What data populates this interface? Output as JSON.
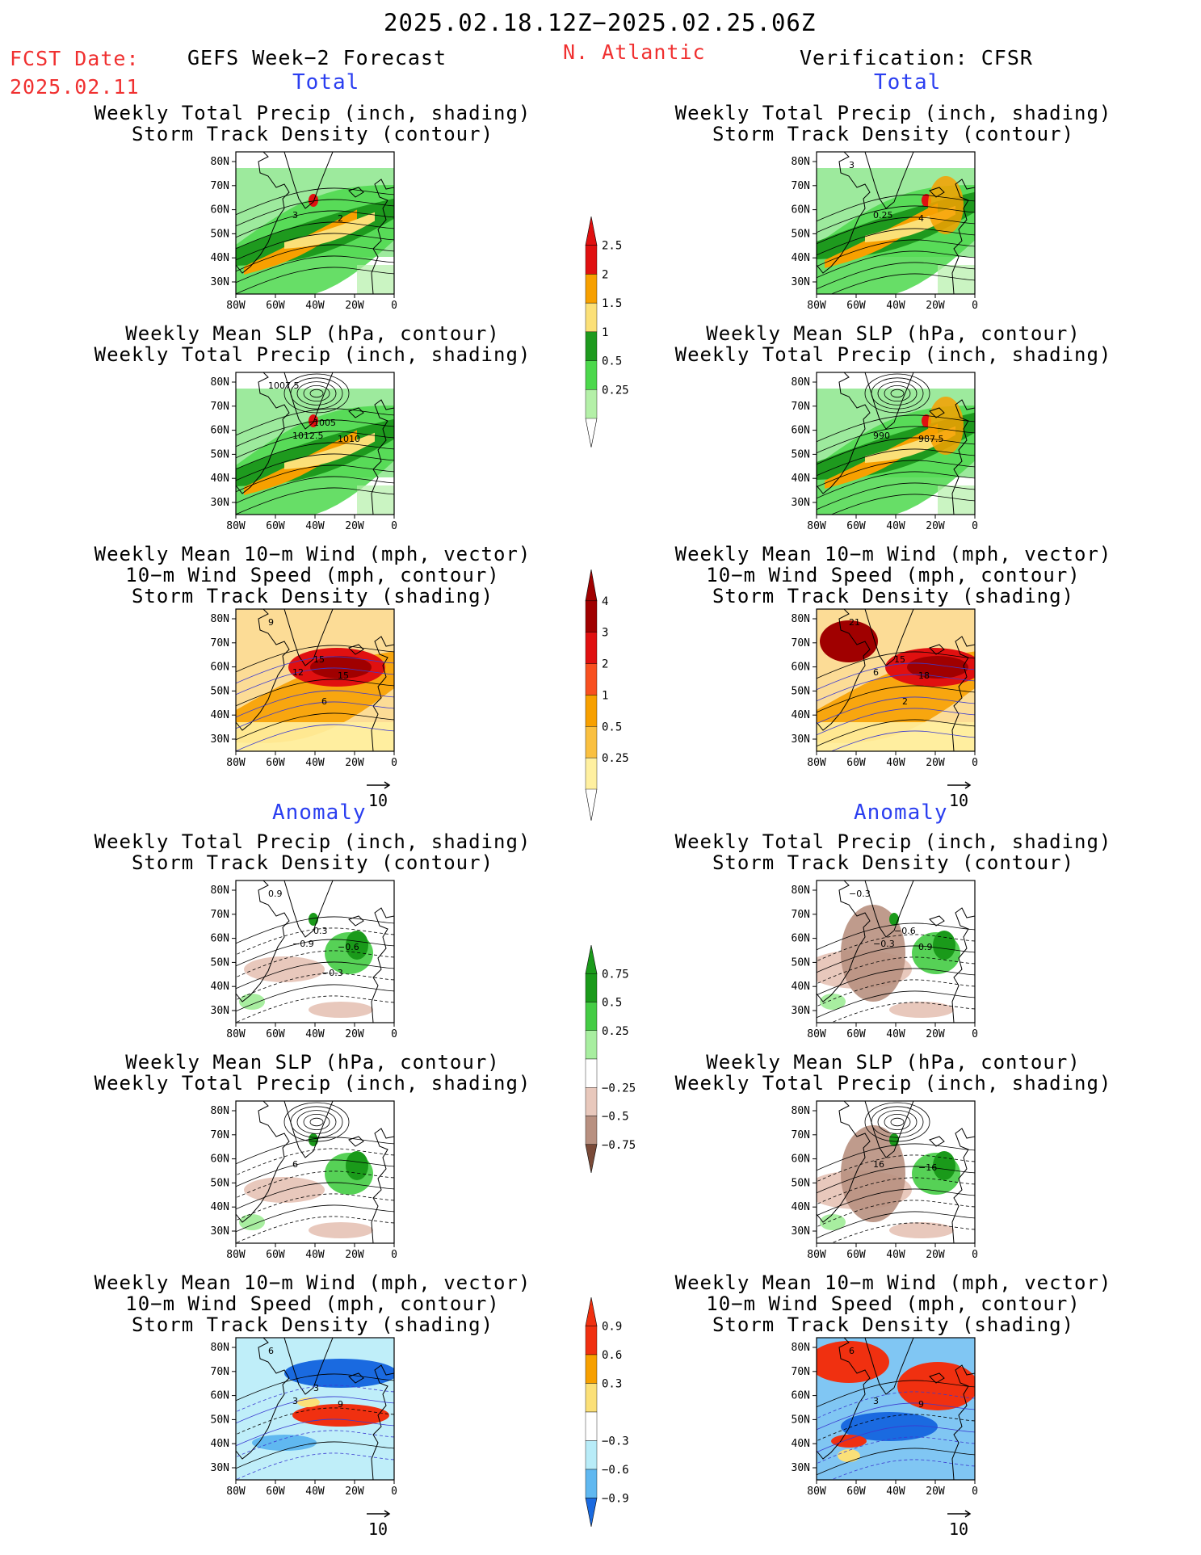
{
  "header": {
    "period": "2025.02.18.12Z−2025.02.25.06Z",
    "fcst_label": "FCST Date:",
    "fcst_date": "2025.02.11",
    "left_title": "GEFS Week−2 Forecast",
    "region": "N. Atlantic",
    "right_title": "Verification: CFSR"
  },
  "sections": {
    "total": "Total",
    "anomaly": "Anomaly"
  },
  "titles": {
    "precip_track": [
      "Weekly Total Precip (inch, shading)",
      "Storm Track Density (contour)"
    ],
    "slp_precip": [
      "Weekly Mean SLP (hPa, contour)",
      "Weekly Total Precip (inch, shading)"
    ],
    "wind_track": [
      "Weekly Mean 10−m Wind (mph, vector)",
      "10−m Wind Speed (mph, contour)",
      "Storm Track Density (shading)"
    ]
  },
  "axes": {
    "lat_labels": [
      "80N",
      "70N",
      "60N",
      "50N",
      "40N",
      "30N"
    ],
    "lon_labels": [
      "80W",
      "60W",
      "40W",
      "20W",
      "0"
    ]
  },
  "vector_ref": "10",
  "panels": [
    {
      "id": "fcst-total-precip",
      "title_key": "precip_track",
      "labels": [
        "3",
        "2"
      ]
    },
    {
      "id": "fcst-total-slp",
      "title_key": "slp_precip",
      "labels": [
        "1012.5",
        "1010",
        "1007.5",
        "1005"
      ]
    },
    {
      "id": "fcst-total-wind",
      "title_key": "wind_track",
      "labels": [
        "12",
        "15",
        "9",
        "15",
        "6"
      ]
    },
    {
      "id": "obs-total-precip",
      "title_key": "precip_track",
      "labels": [
        "0.25",
        "4",
        "3"
      ]
    },
    {
      "id": "obs-total-slp",
      "title_key": "slp_precip",
      "labels": [
        "990",
        "987.5"
      ]
    },
    {
      "id": "obs-total-wind",
      "title_key": "wind_track",
      "labels": [
        "6",
        "18",
        "21",
        "15",
        "2"
      ]
    },
    {
      "id": "fcst-anom-precip",
      "title_key": "precip_track",
      "labels": [
        "−0.9",
        "−0.6",
        "0.9",
        "0.3",
        "−0.3"
      ]
    },
    {
      "id": "fcst-anom-slp",
      "title_key": "slp_precip",
      "labels": [
        "6"
      ]
    },
    {
      "id": "fcst-anom-wind",
      "title_key": "wind_track",
      "labels": [
        "3",
        "9",
        "6",
        "3"
      ]
    },
    {
      "id": "obs-anom-precip",
      "title_key": "precip_track",
      "labels": [
        "−0.3",
        "0.9",
        "−0.3",
        "−0.6"
      ]
    },
    {
      "id": "obs-anom-slp",
      "title_key": "slp_precip",
      "labels": [
        "16",
        "−16"
      ]
    },
    {
      "id": "obs-anom-wind",
      "title_key": "wind_track",
      "labels": [
        "3",
        "9",
        "6"
      ]
    }
  ],
  "colorbars": {
    "precip_total": {
      "labels": [
        "2.5",
        "2",
        "1.5",
        "1",
        "0.5",
        "0.25"
      ],
      "colors": [
        "#e01010",
        "#f7a000",
        "#fbe078",
        "#1e9a1e",
        "#4cd84c",
        "#b4f0a8"
      ]
    },
    "track_total": {
      "labels": [
        "4",
        "3",
        "2",
        "1",
        "0.5",
        "0.25"
      ],
      "colors": [
        "#a00000",
        "#e01010",
        "#f85020",
        "#f7a000",
        "#fac040",
        "#fff0a0"
      ]
    },
    "precip_anom": {
      "labels": [
        "0.75",
        "0.5",
        "0.25",
        "−0.25",
        "−0.5",
        "−0.75"
      ],
      "colors": [
        "#1a9a1a",
        "#44cc44",
        "#a8eea0",
        "#ffffff",
        "#e8c8bc",
        "#b89080",
        "#7a4a38"
      ]
    },
    "track_anom": {
      "labels": [
        "0.9",
        "0.6",
        "0.3",
        "−0.3",
        "−0.6",
        "−0.9"
      ],
      "colors": [
        "#f03010",
        "#f7a000",
        "#fbe078",
        "#ffffff",
        "#b8ecf8",
        "#60b8f0",
        "#1a6ae0"
      ]
    }
  }
}
